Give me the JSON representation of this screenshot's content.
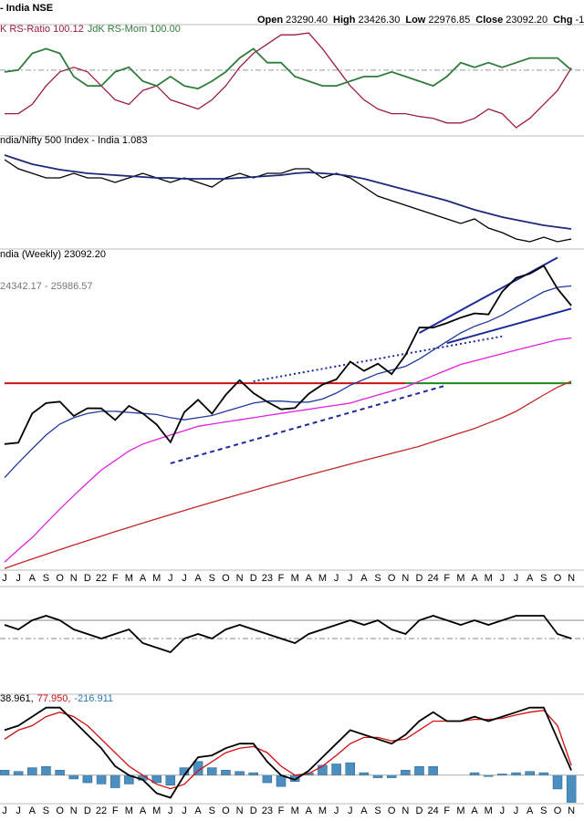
{
  "header": {
    "symbol": "- India NSE",
    "ohlc": [
      {
        "label": "Open",
        "value": "23290.40"
      },
      {
        "label": "High",
        "value": "23426.30"
      },
      {
        "label": "Low",
        "value": "22976.85"
      },
      {
        "label": "Close",
        "value": "23092.20"
      },
      {
        "label": "Chg",
        "value": "-1"
      }
    ]
  },
  "chart_data": [
    {
      "type": "line",
      "ylim": [
        96.5,
        102.4
      ],
      "ref_lines": [
        {
          "value": 100,
          "dash": "6,3,2,3",
          "color": "#999"
        }
      ],
      "legend": [
        {
          "text": "K RS-Ratio 100.12",
          "color": "#9b1b4a"
        },
        {
          "text": "JdK RS-Mom 100.00",
          "color": "#2e7d3a"
        }
      ],
      "series": [
        {
          "color": "#9b1b4a",
          "values": [
            97.65,
            97.65,
            98.15,
            99.15,
            99.9,
            100.15,
            99.9,
            99.15,
            98.4,
            98.15,
            98.9,
            99.15,
            98.4,
            98.15,
            97.9,
            98.4,
            99.15,
            100.15,
            100.9,
            101.4,
            101.9,
            101.9,
            102.0,
            101.15,
            100.15,
            99.15,
            98.4,
            97.9,
            97.65,
            97.65,
            97.5,
            97.4,
            97.15,
            97.15,
            97.4,
            97.9,
            97.65,
            96.9,
            97.4,
            98.15,
            98.9,
            100.12
          ]
        },
        {
          "color": "#2e7d3a",
          "values": [
            99.9,
            100,
            100.9,
            101.15,
            100.9,
            99.65,
            99.15,
            99.15,
            99.9,
            100.15,
            99.4,
            99.15,
            99.65,
            99.15,
            99,
            99.4,
            99.9,
            100.65,
            101.15,
            100.4,
            100.4,
            99.65,
            99.4,
            99.15,
            99.15,
            99.4,
            99.65,
            99.65,
            99.9,
            99.65,
            99.4,
            99.15,
            99.65,
            100.4,
            100.15,
            100.4,
            100.15,
            100.4,
            100.65,
            100.65,
            100.65,
            100
          ]
        }
      ]
    },
    {
      "type": "line",
      "ylim": [
        1.063,
        1.307
      ],
      "legend": [
        {
          "text": "ndia/Nifty 500 Index - India 1.083",
          "color": "#000"
        }
      ],
      "series": [
        {
          "color": "#000",
          "values": [
            1.257,
            1.237,
            1.227,
            1.217,
            1.217,
            1.227,
            1.217,
            1.217,
            1.207,
            1.217,
            1.227,
            1.217,
            1.207,
            1.217,
            1.207,
            1.197,
            1.217,
            1.227,
            1.217,
            1.227,
            1.227,
            1.237,
            1.237,
            1.217,
            1.227,
            1.217,
            1.197,
            1.177,
            1.167,
            1.157,
            1.147,
            1.137,
            1.127,
            1.117,
            1.127,
            1.107,
            1.097,
            1.083,
            1.077,
            1.087,
            1.077,
            1.083
          ]
        },
        {
          "color": "#1c2a7a",
          "values": [
            1.267,
            1.257,
            1.247,
            1.241,
            1.235,
            1.231,
            1.227,
            1.225,
            1.223,
            1.221,
            1.219,
            1.217,
            1.217,
            1.215,
            1.215,
            1.215,
            1.215,
            1.217,
            1.219,
            1.221,
            1.223,
            1.227,
            1.229,
            1.227,
            1.225,
            1.221,
            1.215,
            1.207,
            1.199,
            1.191,
            1.183,
            1.175,
            1.167,
            1.157,
            1.147,
            1.139,
            1.131,
            1.125,
            1.119,
            1.113,
            1.109,
            1.105
          ]
        }
      ]
    },
    {
      "type": "line",
      "log": true,
      "ylim": [
        11050,
        26900
      ],
      "legend": [
        {
          "text": "ndia (Weekly) 23092.20",
          "color": "#000"
        }
      ],
      "sublegend": [
        {
          "text": "24342.17 - 25986.57",
          "color": "#777"
        }
      ],
      "categories": [
        "J",
        "J",
        "A",
        "S",
        "O",
        "N",
        "D",
        "22",
        "F",
        "M",
        "A",
        "M",
        "J",
        "J",
        "A",
        "S",
        "O",
        "N",
        "D",
        "23",
        "F",
        "M",
        "A",
        "M",
        "J",
        "J",
        "A",
        "S",
        "O",
        "N",
        "D",
        "24",
        "F",
        "M",
        "A",
        "M",
        "J",
        "J",
        "A",
        "S",
        "O",
        "N"
      ],
      "lines": [
        {
          "points": [
            [
              0,
              18600
            ],
            [
              29,
              18600
            ]
          ],
          "color": "#d01010",
          "dash": "none"
        },
        {
          "points": [
            [
              29,
              18600
            ],
            [
              41,
              18600
            ]
          ],
          "color": "#1a8a1a",
          "dash": "none"
        },
        {
          "points": [
            [
              18,
              18700
            ],
            [
              36,
              21200
            ]
          ],
          "color": "#1c2a9a",
          "dash": "2,3"
        },
        {
          "points": [
            [
              12,
              14880
            ],
            [
              32,
              18500
            ]
          ],
          "color": "#1c2a9a",
          "dash": "5,4"
        },
        {
          "points": [
            [
              30,
              21400
            ],
            [
              40,
              26400
            ]
          ],
          "color": "#1c2a9a",
          "dash": "none"
        },
        {
          "points": [
            [
              32,
              20800
            ],
            [
              41,
              22900
            ]
          ],
          "color": "#1c2a9a",
          "dash": "none"
        }
      ],
      "series": [
        {
          "color": "#c0282a",
          "values": [
            11100,
            11250,
            11400,
            11550,
            11700,
            11850,
            12000,
            12150,
            12300,
            12450,
            12600,
            12750,
            12900,
            13050,
            13200,
            13350,
            13500,
            13650,
            13800,
            13950,
            14100,
            14250,
            14400,
            14550,
            14700,
            14850,
            15000,
            15150,
            15300,
            15450,
            15600,
            15800,
            16000,
            16200,
            16400,
            16650,
            16900,
            17200,
            17600,
            18000,
            18400,
            18700
          ]
        },
        {
          "color": "#e020e0",
          "values": [
            11300,
            11700,
            12100,
            12600,
            13100,
            13600,
            14100,
            14600,
            15000,
            15400,
            15700,
            15900,
            16100,
            16300,
            16500,
            16600,
            16700,
            16800,
            16900,
            17000,
            17100,
            17200,
            17300,
            17400,
            17500,
            17600,
            17800,
            18000,
            18200,
            18400,
            18700,
            19000,
            19300,
            19600,
            19800,
            20000,
            20200,
            20400,
            20600,
            20800,
            21000,
            21100
          ]
        },
        {
          "color": "#1f3a9a",
          "values": [
            14300,
            14900,
            15500,
            16100,
            16600,
            16900,
            17100,
            17200,
            17200,
            17150,
            17100,
            17050,
            16900,
            16800,
            16900,
            17000,
            17200,
            17400,
            17600,
            17700,
            17700,
            17650,
            17650,
            17800,
            18100,
            18500,
            18800,
            19100,
            19300,
            19500,
            19900,
            20400,
            20900,
            21400,
            21800,
            22100,
            22500,
            23000,
            23500,
            24000,
            24300,
            24400
          ]
        },
        {
          "color": "#000",
          "values": [
            15700,
            15760,
            17100,
            17600,
            17670,
            16980,
            17350,
            17340,
            16790,
            17460,
            17100,
            16580,
            15780,
            17160,
            17760,
            17090,
            18010,
            18760,
            18100,
            17660,
            17300,
            17360,
            18060,
            18530,
            18800,
            19750,
            19250,
            19640,
            19080,
            20130,
            21730,
            21720,
            22000,
            22330,
            22600,
            22530,
            24010,
            24950,
            25240,
            25810,
            24200,
            23092.2
          ]
        }
      ]
    },
    {
      "type": "line",
      "ylim": [
        -60,
        55
      ],
      "ref_lines": [
        {
          "value": 20,
          "dash": "none",
          "color": "#888"
        },
        {
          "value": 0,
          "dash": "6,3,2,3",
          "color": "#888"
        }
      ],
      "series": [
        {
          "color": "#000",
          "values": [
            15,
            10,
            20,
            25,
            20,
            10,
            5,
            0,
            5,
            10,
            -5,
            -10,
            -15,
            0,
            5,
            0,
            10,
            15,
            10,
            5,
            0,
            -5,
            5,
            10,
            15,
            20,
            15,
            20,
            10,
            5,
            20,
            25,
            20,
            15,
            20,
            15,
            20,
            25,
            25,
            25,
            5,
            0
          ]
        }
      ]
    },
    {
      "type": "line",
      "ylim": [
        -220,
        640
      ],
      "legend": [
        {
          "text": "38.961,",
          "color": "#000"
        },
        {
          "text": "77.950,",
          "color": "#d01010"
        },
        {
          "text": "-216.911",
          "color": "#2a7ab0"
        }
      ],
      "categories": [
        "J",
        "J",
        "A",
        "S",
        "O",
        "N",
        "D",
        "22",
        "F",
        "M",
        "A",
        "M",
        "J",
        "J",
        "A",
        "S",
        "O",
        "N",
        "D",
        "23",
        "F",
        "M",
        "A",
        "M",
        "J",
        "J",
        "A",
        "S",
        "O",
        "N",
        "D",
        "24",
        "F",
        "M",
        "A",
        "M",
        "J",
        "J",
        "A",
        "S",
        "O",
        "N"
      ],
      "series": [
        {
          "type": "bar",
          "color": "#4a8fc0",
          "values": [
            40,
            30,
            60,
            70,
            40,
            -30,
            -60,
            -70,
            -100,
            -70,
            -40,
            -60,
            -80,
            60,
            110,
            60,
            40,
            30,
            20,
            -60,
            -90,
            -50,
            20,
            80,
            90,
            100,
            20,
            -20,
            -20,
            40,
            70,
            70,
            0,
            0,
            20,
            -10,
            10,
            20,
            30,
            20,
            -110,
            -216.911
          ]
        },
        {
          "color": "#d01010",
          "values": [
            288,
            360,
            396,
            468,
            504,
            468,
            396,
            288,
            180,
            72,
            0,
            -72,
            -108,
            -72,
            36,
            108,
            180,
            216,
            230,
            180,
            72,
            0,
            14,
            72,
            158,
            252,
            302,
            302,
            274,
            288,
            360,
            432,
            432,
            432,
            446,
            446,
            454,
            482,
            504,
            518,
            396,
            77.95
          ]
        },
        {
          "color": "#000",
          "values": [
            360,
            396,
            468,
            540,
            540,
            432,
            324,
            216,
            72,
            0,
            -36,
            -144,
            -180,
            0,
            144,
            158,
            216,
            252,
            252,
            108,
            0,
            -36,
            36,
            144,
            252,
            360,
            324,
            288,
            252,
            324,
            432,
            504,
            432,
            432,
            468,
            432,
            468,
            504,
            540,
            540,
            288,
            38.961
          ]
        }
      ]
    }
  ]
}
